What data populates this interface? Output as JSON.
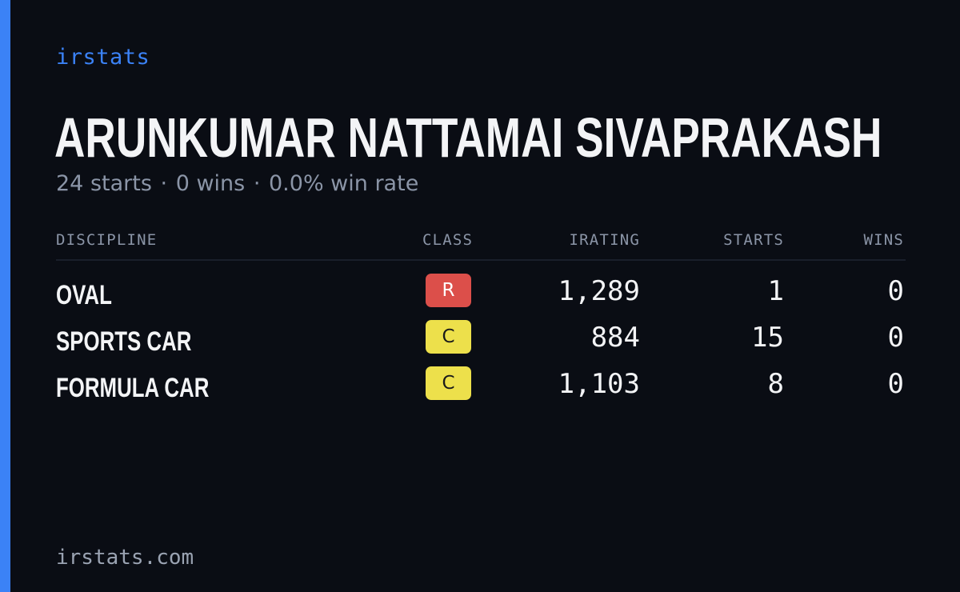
{
  "brand": "irstats",
  "driver": {
    "name": "ARUNKUMAR NATTAMAI SIVAPRAKASH"
  },
  "summary": {
    "starts": "24 starts",
    "wins": "0 wins",
    "win_rate": "0.0% win rate",
    "separator": "·"
  },
  "table": {
    "headers": {
      "discipline": "DISCIPLINE",
      "class": "CLASS",
      "irating": "IRATING",
      "starts": "STARTS",
      "wins": "WINS"
    },
    "rows": [
      {
        "discipline": "OVAL",
        "class": "R",
        "class_color": "#dc4f4a",
        "irating": "1,289",
        "starts": "1",
        "wins": "0"
      },
      {
        "discipline": "SPORTS CAR",
        "class": "C",
        "class_color": "#ede04b",
        "irating": "884",
        "starts": "15",
        "wins": "0"
      },
      {
        "discipline": "FORMULA CAR",
        "class": "C",
        "class_color": "#ede04b",
        "irating": "1,103",
        "starts": "8",
        "wins": "0"
      }
    ]
  },
  "footer": {
    "url": "irstats.com"
  },
  "colors": {
    "background": "#0a0d14",
    "accent": "#3b82f6",
    "text": "#f3f4f6",
    "muted": "#8b95a7"
  }
}
